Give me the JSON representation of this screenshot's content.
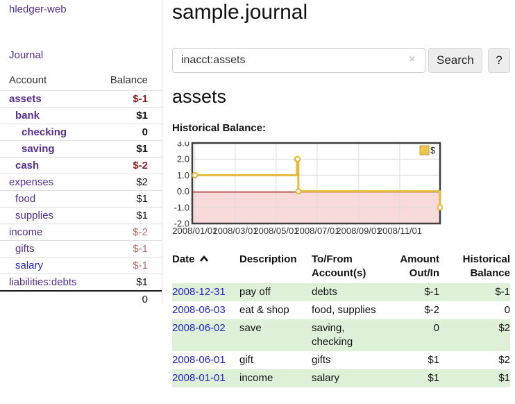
{
  "colors": {
    "link_purple": "#552d90",
    "link_blue": "#2424cc",
    "neg_strong": "#8f1d1d",
    "neg_soft": "#b96b6b",
    "row_stripe": "#dff0d8",
    "chart_line": "#e3ba3a",
    "chart_marker_fill": "#ffffff",
    "chart_negative_bg": "#f9dada",
    "chart_zero_line": "#8e0000",
    "chart_grid": "#dcdcdc",
    "chart_border": "#3e3e3e",
    "legend_fill": "#ecc64f",
    "legend_border": "#c5a030"
  },
  "sidebar": {
    "brand": "hledger-web",
    "nav": {
      "journal": "Journal"
    },
    "accounts_table": {
      "headers": {
        "account": "Account",
        "balance": "Balance"
      },
      "rows": [
        {
          "name": "assets",
          "balance": "$-1",
          "level": 1,
          "bold": true,
          "neg": "strong"
        },
        {
          "name": "bank",
          "balance": "$1",
          "level": 2,
          "bold": true
        },
        {
          "name": "checking",
          "balance": "0",
          "level": 3,
          "bold": true
        },
        {
          "name": "saving",
          "balance": "$1",
          "level": 3,
          "bold": true
        },
        {
          "name": "cash",
          "balance": "$-2",
          "level": 2,
          "bold": true,
          "neg": "strong"
        },
        {
          "name": "expenses",
          "balance": "$2",
          "level": 1
        },
        {
          "name": "food",
          "balance": "$1",
          "level": 2
        },
        {
          "name": "supplies",
          "balance": "$1",
          "level": 2
        },
        {
          "name": "income",
          "balance": "$-2",
          "level": 1,
          "neg": "soft"
        },
        {
          "name": "gifts",
          "balance": "$-1",
          "level": 2,
          "neg": "soft"
        },
        {
          "name": "salary",
          "balance": "$-1",
          "level": 2,
          "neg": "soft",
          "color": "blue"
        },
        {
          "name": "liabilities:debts",
          "balance": "$1",
          "level": 1
        }
      ],
      "total": "0"
    }
  },
  "main": {
    "title": "sample.journal",
    "search": {
      "value": "inacct:assets",
      "clear_icon": "×",
      "search_button": "Search",
      "help_button": "?"
    },
    "account_heading": "assets",
    "chart_heading": "Historical Balance:"
  },
  "chart_data": {
    "type": "line",
    "step": true,
    "title": "Historical Balance",
    "series": [
      {
        "name": "$",
        "points": [
          {
            "date": "2008-01-01",
            "value": 1
          },
          {
            "date": "2008-06-01",
            "value": 2
          },
          {
            "date": "2008-06-02",
            "value": 2
          },
          {
            "date": "2008-06-03",
            "value": 0
          },
          {
            "date": "2008-12-31",
            "value": -1
          }
        ]
      }
    ],
    "ylim": [
      -2,
      3
    ],
    "yticks": [
      "3.0",
      "2.0",
      "1.0",
      "0.0",
      "-1.0",
      "-2.0"
    ],
    "xtick_dates": [
      "2008-01-01",
      "2008-03-01",
      "2008-05-01",
      "2008-07-01",
      "2008-09-01",
      "2008-11-01"
    ],
    "xtick_labels": [
      "2008/01/01",
      "2008/03/01",
      "2008/05/01",
      "2008/07/01",
      "2008/09/01",
      "2008/11/01"
    ],
    "x_range": [
      "2008-01-01",
      "2008-12-31"
    ],
    "grid": true,
    "legend_position": "top-right",
    "negative_region_shaded": true
  },
  "table": {
    "headers": [
      {
        "label": "Date",
        "sort": "asc",
        "align": "left"
      },
      {
        "label": "Description",
        "align": "left"
      },
      {
        "label": "To/From Account(s)",
        "align": "left"
      },
      {
        "label": "Amount Out/In",
        "align": "right"
      },
      {
        "label": "Historical Balance",
        "align": "right"
      }
    ],
    "rows": [
      {
        "date": "2008-12-31",
        "description": "pay off",
        "accounts": "debts",
        "amount": "$-1",
        "balance": "$-1"
      },
      {
        "date": "2008-06-03",
        "description": "eat & shop",
        "accounts": "food, supplies",
        "amount": "$-2",
        "balance": "0"
      },
      {
        "date": "2008-06-02",
        "description": "save",
        "accounts": "saving, checking",
        "amount": "0",
        "balance": "$2"
      },
      {
        "date": "2008-06-01",
        "description": "gift",
        "accounts": "gifts",
        "amount": "$1",
        "balance": "$2"
      },
      {
        "date": "2008-01-01",
        "description": "income",
        "accounts": "salary",
        "amount": "$1",
        "balance": "$1"
      }
    ]
  }
}
